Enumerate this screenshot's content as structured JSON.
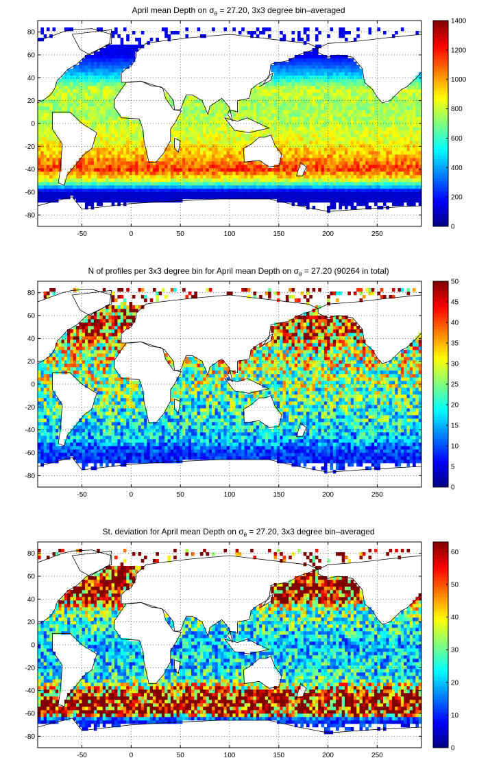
{
  "figure": {
    "panels": [
      {
        "title_pre": "April mean Depth on ",
        "title_sym": "σ",
        "title_sub": "θ",
        "title_post": " = 27.20, 3x3 degree bin–averaged",
        "colorbar": {
          "min": 0,
          "max": 1400,
          "ticks": [
            0,
            200,
            400,
            600,
            800,
            1000,
            1200,
            1400
          ]
        }
      },
      {
        "title_pre": "N of profiles per 3x3 degree bin for April mean Depth on ",
        "title_sym": "σ",
        "title_sub": "θ",
        "title_post": " = 27.20 (90264 in total)",
        "colorbar": {
          "min": 0,
          "max": 50,
          "ticks": [
            0,
            5,
            10,
            15,
            20,
            25,
            30,
            35,
            40,
            45,
            50
          ]
        }
      },
      {
        "title_pre": "St. deviation for April mean Depth on ",
        "title_sym": "σ",
        "title_sub": "θ",
        "title_post": " = 27.20, 3x3 degree bin–averaged",
        "colorbar": {
          "min": 0,
          "max": 63,
          "ticks": [
            0,
            10,
            20,
            30,
            40,
            50,
            60
          ]
        }
      }
    ]
  },
  "chart_data": [
    {
      "type": "heatmap",
      "title": "April mean Depth on σθ = 27.20, 3x3 degree bin–averaged",
      "xlim": [
        -95,
        295
      ],
      "ylim": [
        -90,
        90
      ],
      "xticks": [
        -50,
        0,
        50,
        100,
        150,
        200,
        250
      ],
      "yticks": [
        -80,
        -60,
        -40,
        -20,
        0,
        20,
        40,
        60,
        80
      ],
      "grid": true,
      "colormap": "jet",
      "colorbar_range": [
        0,
        1400
      ],
      "latitude_band_values": [
        {
          "lat": 60,
          "value": 150
        },
        {
          "lat": 45,
          "value": 400
        },
        {
          "lat": 30,
          "value": 800
        },
        {
          "lat": 15,
          "value": 750
        },
        {
          "lat": 0,
          "value": 780
        },
        {
          "lat": -15,
          "value": 850
        },
        {
          "lat": -30,
          "value": 1000
        },
        {
          "lat": -40,
          "value": 1150
        },
        {
          "lat": -50,
          "value": 800
        },
        {
          "lat": -60,
          "value": 100
        },
        {
          "lat": -70,
          "value": 100
        }
      ]
    },
    {
      "type": "heatmap",
      "title": "N of profiles per 3x3 degree bin for April mean Depth on σθ = 27.20 (90264 in total)",
      "xlim": [
        -95,
        295
      ],
      "ylim": [
        -90,
        90
      ],
      "xticks": [
        -50,
        0,
        50,
        100,
        150,
        200,
        250
      ],
      "yticks": [
        -80,
        -60,
        -40,
        -20,
        0,
        20,
        40,
        60,
        80
      ],
      "grid": true,
      "colormap": "jet",
      "colorbar_range": [
        0,
        50
      ],
      "total_profiles": 90264,
      "latitude_band_values": [
        {
          "lat": 45,
          "value": 40
        },
        {
          "lat": 30,
          "value": 30
        },
        {
          "lat": 0,
          "value": 25
        },
        {
          "lat": -30,
          "value": 20
        },
        {
          "lat": -50,
          "value": 15
        },
        {
          "lat": -60,
          "value": 8
        }
      ]
    },
    {
      "type": "heatmap",
      "title": "St. deviation for April mean Depth on σθ = 27.20, 3x3 degree bin–averaged",
      "xlim": [
        -95,
        295
      ],
      "ylim": [
        -90,
        90
      ],
      "xticks": [
        -50,
        0,
        50,
        100,
        150,
        200,
        250
      ],
      "yticks": [
        -80,
        -60,
        -40,
        -20,
        0,
        20,
        40,
        60,
        80
      ],
      "grid": true,
      "colormap": "jet",
      "colorbar_range": [
        0,
        63
      ],
      "latitude_band_values": [
        {
          "lat": 45,
          "value": 60
        },
        {
          "lat": 30,
          "value": 30
        },
        {
          "lat": 0,
          "value": 20
        },
        {
          "lat": -30,
          "value": 25
        },
        {
          "lat": -45,
          "value": 62
        },
        {
          "lat": -60,
          "value": 60
        },
        {
          "lat": -65,
          "value": 10
        }
      ]
    }
  ]
}
